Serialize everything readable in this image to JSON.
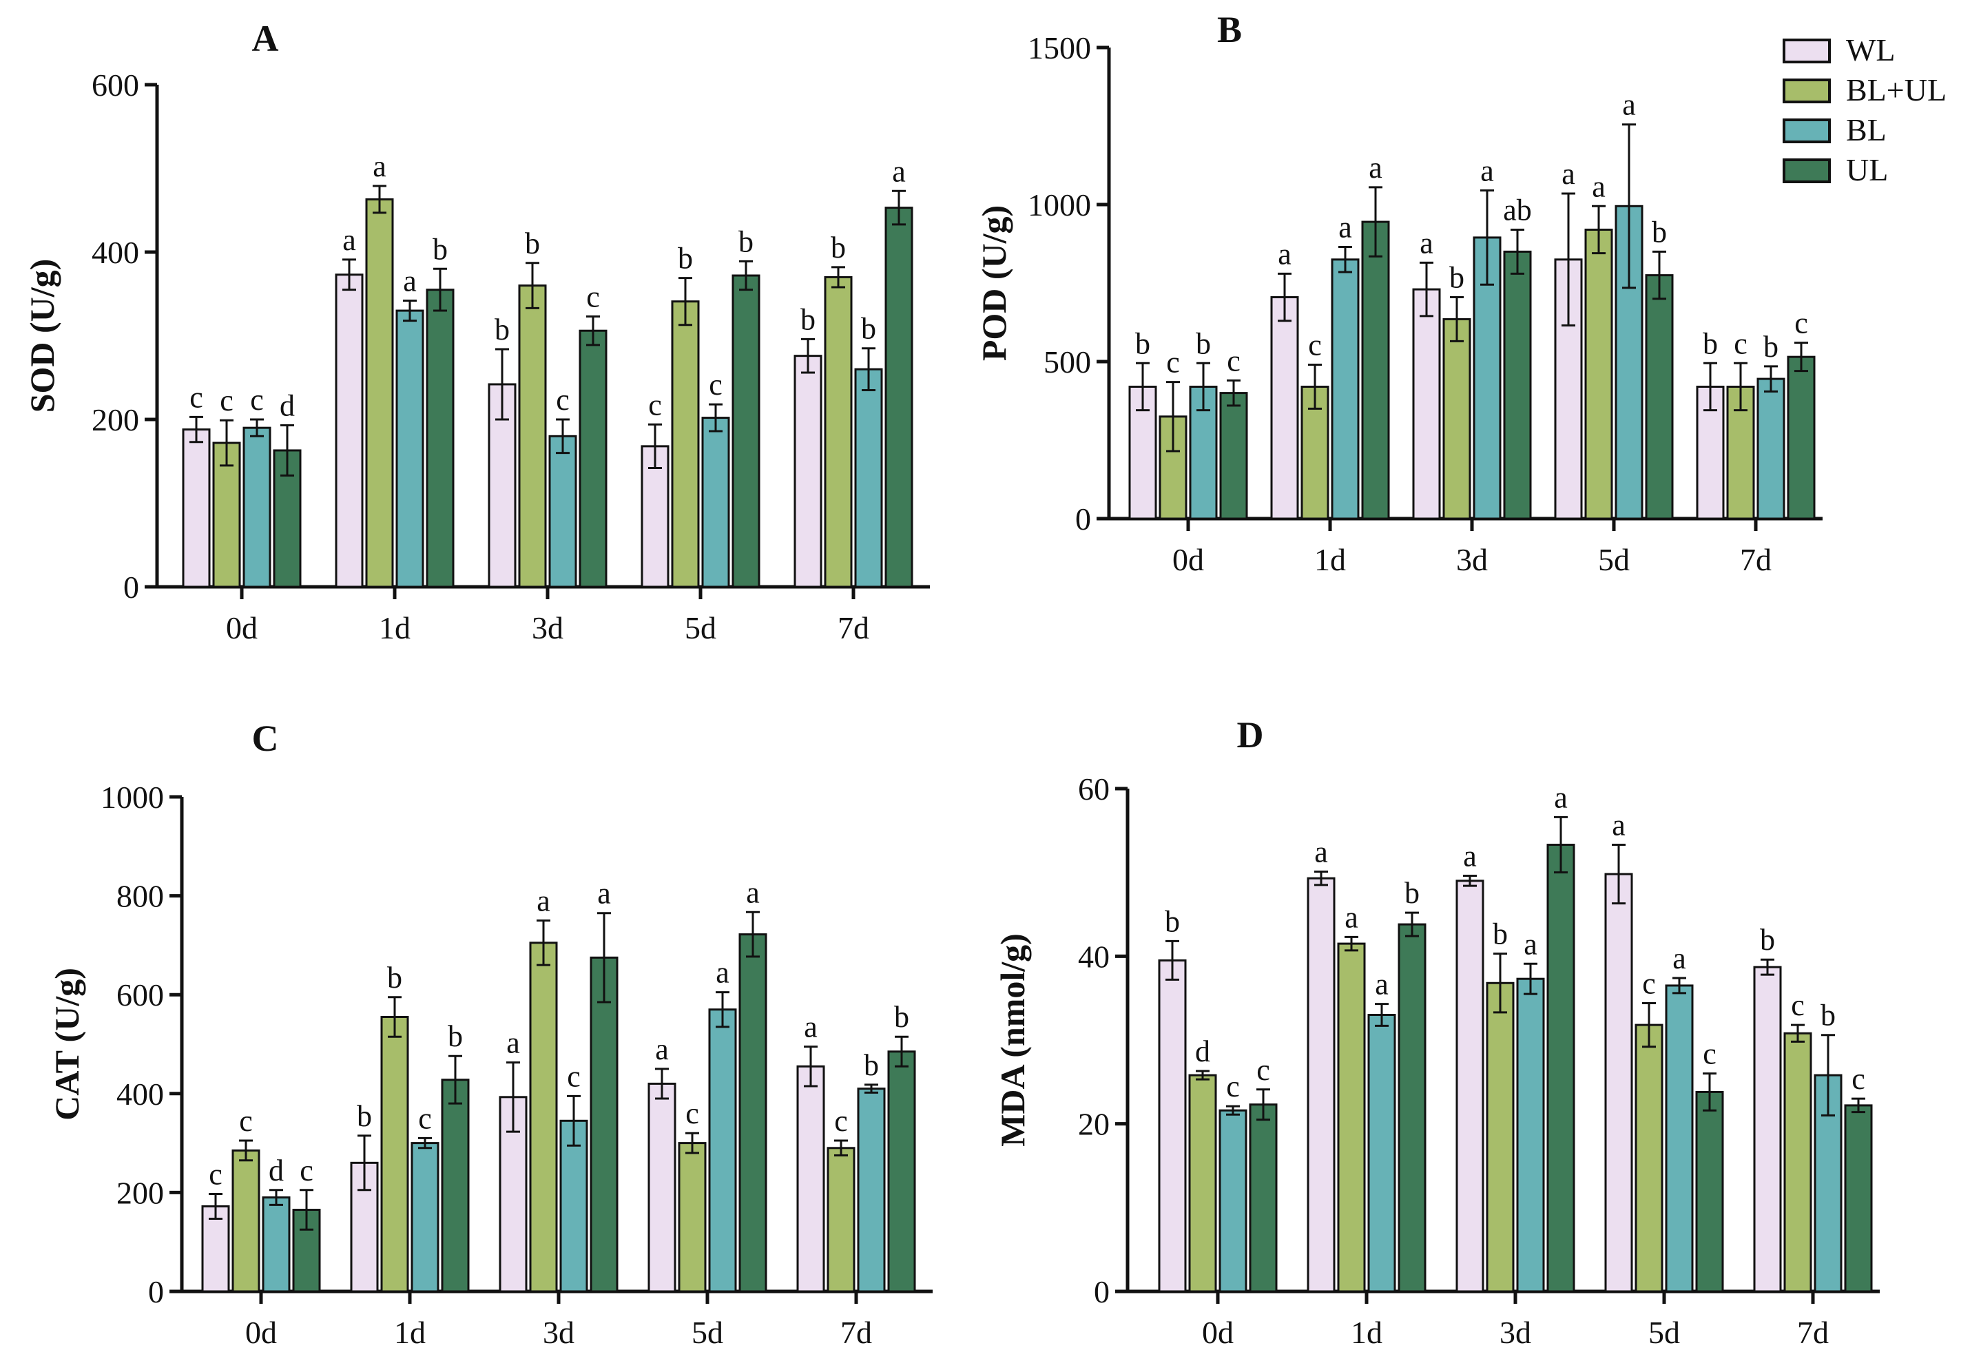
{
  "chart_data": [
    {
      "type": "bar",
      "panel": "A",
      "ylabel": "SOD (U/g)",
      "xlabel": "",
      "categories": [
        "0d",
        "1d",
        "3d",
        "5d",
        "7d"
      ],
      "ylim": [
        0,
        600
      ],
      "yticks": [
        0,
        200,
        400,
        600
      ],
      "series": [
        {
          "name": "WL",
          "values": [
            188,
            373,
            242,
            168,
            276
          ],
          "errors": [
            15,
            18,
            42,
            26,
            20
          ],
          "labels": [
            "c",
            "a",
            "b",
            "c",
            "b"
          ]
        },
        {
          "name": "BL+UL",
          "values": [
            172,
            463,
            360,
            341,
            370
          ],
          "errors": [
            27,
            16,
            27,
            28,
            12
          ],
          "labels": [
            "c",
            "a",
            "b",
            "b",
            "b"
          ]
        },
        {
          "name": "BL",
          "values": [
            190,
            330,
            180,
            202,
            260
          ],
          "errors": [
            10,
            12,
            20,
            16,
            25
          ],
          "labels": [
            "c",
            "a",
            "c",
            "c",
            "b"
          ]
        },
        {
          "name": "UL",
          "values": [
            163,
            355,
            306,
            372,
            453
          ],
          "errors": [
            30,
            25,
            17,
            17,
            20
          ],
          "labels": [
            "d",
            "b",
            "c",
            "b",
            "a"
          ]
        }
      ]
    },
    {
      "type": "bar",
      "panel": "B",
      "ylabel": "POD (U/g)",
      "xlabel": "",
      "categories": [
        "0d",
        "1d",
        "3d",
        "5d",
        "7d"
      ],
      "ylim": [
        0,
        1500
      ],
      "yticks": [
        0,
        500,
        1000,
        1500
      ],
      "series": [
        {
          "name": "WL",
          "values": [
            420,
            705,
            730,
            825,
            420
          ],
          "errors": [
            75,
            75,
            85,
            210,
            75
          ],
          "labels": [
            "b",
            "a",
            "a",
            "a",
            "b"
          ]
        },
        {
          "name": "BL+UL",
          "values": [
            325,
            420,
            635,
            920,
            420
          ],
          "errors": [
            110,
            70,
            70,
            75,
            75
          ],
          "labels": [
            "c",
            "c",
            "b",
            "a",
            "c"
          ]
        },
        {
          "name": "BL",
          "values": [
            420,
            825,
            895,
            995,
            445
          ],
          "errors": [
            75,
            40,
            150,
            260,
            40
          ],
          "labels": [
            "b",
            "a",
            "a",
            "a",
            "b"
          ]
        },
        {
          "name": "UL",
          "values": [
            400,
            945,
            850,
            775,
            515
          ],
          "errors": [
            40,
            110,
            70,
            75,
            45
          ],
          "labels": [
            "c",
            "a",
            "ab",
            "b",
            "c"
          ]
        }
      ]
    },
    {
      "type": "bar",
      "panel": "C",
      "ylabel": "CAT (U/g)",
      "xlabel": "",
      "categories": [
        "0d",
        "1d",
        "3d",
        "5d",
        "7d"
      ],
      "ylim": [
        0,
        1000
      ],
      "yticks": [
        0,
        200,
        400,
        600,
        800,
        1000
      ],
      "series": [
        {
          "name": "WL",
          "values": [
            172,
            260,
            393,
            420,
            455
          ],
          "errors": [
            25,
            55,
            70,
            30,
            40
          ],
          "labels": [
            "c",
            "b",
            "a",
            "a",
            "a"
          ]
        },
        {
          "name": "BL+UL",
          "values": [
            285,
            555,
            705,
            300,
            290
          ],
          "errors": [
            20,
            40,
            45,
            20,
            15
          ],
          "labels": [
            "c",
            "b",
            "a",
            "c",
            "c"
          ]
        },
        {
          "name": "BL",
          "values": [
            190,
            300,
            345,
            570,
            410
          ],
          "errors": [
            15,
            10,
            50,
            35,
            8
          ],
          "labels": [
            "d",
            "c",
            "c",
            "a",
            "b"
          ]
        },
        {
          "name": "UL",
          "values": [
            165,
            428,
            675,
            722,
            485
          ],
          "errors": [
            40,
            48,
            90,
            45,
            30
          ],
          "labels": [
            "c",
            "b",
            "a",
            "a",
            "b"
          ]
        }
      ]
    },
    {
      "type": "bar",
      "panel": "D",
      "ylabel": "MDA (nmol/g)",
      "xlabel": "",
      "categories": [
        "0d",
        "1d",
        "3d",
        "5d",
        "7d"
      ],
      "ylim": [
        0,
        60
      ],
      "yticks": [
        0,
        20,
        40,
        60
      ],
      "series": [
        {
          "name": "WL",
          "values": [
            39.5,
            49.3,
            49.0,
            49.8,
            38.7
          ],
          "errors": [
            2.3,
            0.8,
            0.6,
            3.5,
            0.9
          ],
          "labels": [
            "b",
            "a",
            "a",
            "a",
            "b"
          ]
        },
        {
          "name": "BL+UL",
          "values": [
            25.8,
            41.5,
            36.8,
            31.8,
            30.8
          ],
          "errors": [
            0.5,
            0.8,
            3.5,
            2.6,
            1.0
          ],
          "labels": [
            "d",
            "a",
            "b",
            "c",
            "c"
          ]
        },
        {
          "name": "BL",
          "values": [
            21.6,
            33.0,
            37.3,
            36.5,
            25.8
          ],
          "errors": [
            0.5,
            1.3,
            1.8,
            0.9,
            4.8
          ],
          "labels": [
            "c",
            "a",
            "a",
            "a",
            "b"
          ]
        },
        {
          "name": "UL",
          "values": [
            22.3,
            43.8,
            53.3,
            23.8,
            22.2
          ],
          "errors": [
            1.8,
            1.4,
            3.3,
            2.2,
            0.8
          ],
          "labels": [
            "c",
            "b",
            "a",
            "c",
            "c"
          ]
        }
      ]
    }
  ],
  "legend": {
    "entries": [
      {
        "name": "WL",
        "color": "#ecdff0"
      },
      {
        "name": "BL+UL",
        "color": "#a7bd6a"
      },
      {
        "name": "BL",
        "color": "#67b2b6"
      },
      {
        "name": "UL",
        "color": "#3e7a57"
      }
    ]
  },
  "colors": {
    "WL": "#ecdff0",
    "BL+UL": "#a7bd6a",
    "BL": "#67b2b6",
    "UL": "#3e7a57",
    "axis": "#111111"
  }
}
